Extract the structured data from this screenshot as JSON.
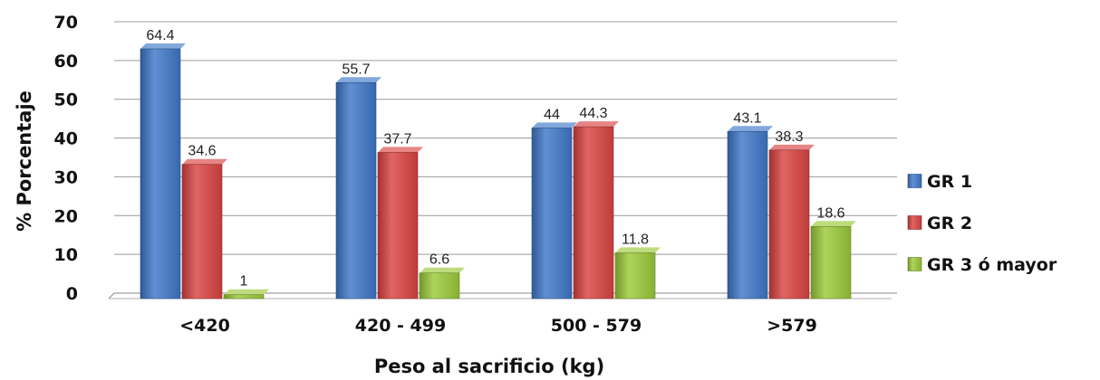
{
  "chart_data": {
    "type": "bar",
    "title": "",
    "xlabel": "Peso al sacrificio (kg)",
    "ylabel": "% Porcentaje",
    "ylim": [
      0,
      70
    ],
    "yticks": [
      0,
      10,
      20,
      30,
      40,
      50,
      60,
      70
    ],
    "grid": true,
    "legend_position": "right",
    "categories": [
      "<420",
      "420 - 499",
      "500 - 579",
      ">579"
    ],
    "series": [
      {
        "name": "GR 1",
        "values": [
          64.4,
          55.7,
          44,
          43.1
        ],
        "color": "#3f77c8"
      },
      {
        "name": "GR 2",
        "values": [
          34.6,
          37.7,
          44.3,
          38.3
        ],
        "color": "#d94341"
      },
      {
        "name": "GR 3 ó mayor",
        "values": [
          1,
          6.6,
          11.8,
          18.6
        ],
        "color": "#9bc93a"
      }
    ]
  }
}
